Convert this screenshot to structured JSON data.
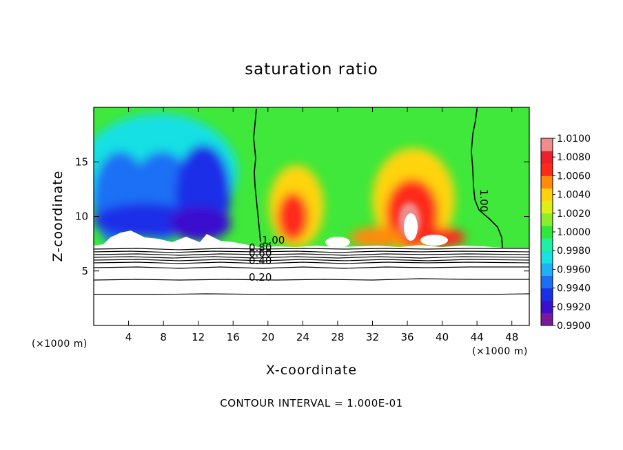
{
  "chart_data": {
    "type": "heatmap",
    "title": "saturation ratio",
    "xlabel": "X-coordinate",
    "ylabel": "Z-coordinate",
    "x_unit": "(×1000 m)",
    "z_unit": "(×1000 m)",
    "xlim": [
      0,
      50
    ],
    "ylim": [
      0,
      20
    ],
    "x_ticks": [
      4,
      8,
      12,
      16,
      20,
      24,
      28,
      32,
      36,
      40,
      44,
      48
    ],
    "y_ticks": [
      5,
      10,
      15
    ],
    "colorbar": {
      "min": 0.99,
      "max": 1.01,
      "tick_labels": [
        "1.0100",
        "1.0080",
        "1.0060",
        "1.0040",
        "1.0020",
        "1.0000",
        "0.9980",
        "0.9960",
        "0.9940",
        "0.9920",
        "0.9900"
      ],
      "colors": [
        "#7a1a9a",
        "#3b0fcf",
        "#1a2fe8",
        "#1c6ff5",
        "#1fb0f6",
        "#19e0e3",
        "#1ff0a4",
        "#2fe83a",
        "#8cee2a",
        "#dcf018",
        "#ffd40e",
        "#ff8a0c",
        "#ff2a1a",
        "#ee2030",
        "#f08c8c"
      ]
    },
    "contour_labels": [
      {
        "text": "1.00",
        "x": 19.3,
        "z": 7.5
      },
      {
        "text": "1.00",
        "x": 44.4,
        "z": 12.5
      },
      {
        "text": "0.80",
        "x": 17.8,
        "z": 6.8
      },
      {
        "text": "0.60",
        "x": 17.8,
        "z": 6.3
      },
      {
        "text": "0.40",
        "x": 17.8,
        "z": 5.6
      },
      {
        "text": "0.20",
        "x": 17.8,
        "z": 4.1
      }
    ],
    "footer": "CONTOUR INTERVAL = 1.000E-01"
  }
}
